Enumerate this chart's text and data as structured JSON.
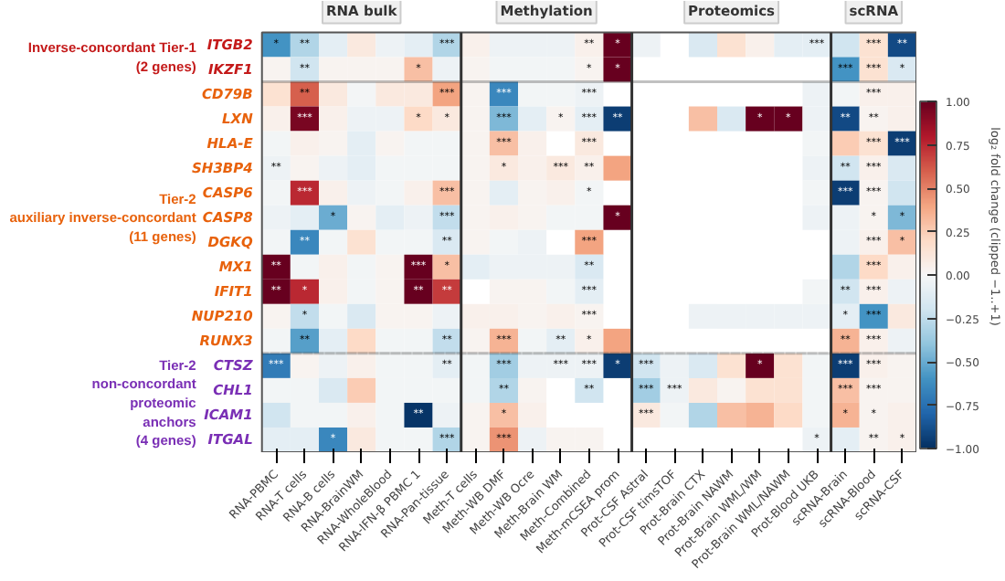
{
  "chart_data": {
    "type": "heatmap",
    "clabel": "log₂ fold change (clipped −1..+1)",
    "categories": [
      "RNA-PBMC",
      "RNA-T cells",
      "RNA-B cells",
      "RNA-BrainWM",
      "RNA-WholeBlood",
      "RNA-IFN-β PBMC 1",
      "RNA-Pan-tissue",
      "Meth-T cells",
      "Meth-WB DMF",
      "Meth-WB Ocre",
      "Meth-Brain WM",
      "Meth-Combined",
      "Meth-mCSEA prom",
      "Prot-CSF Astral",
      "Prot-CSF timsTOF",
      "Prot-Brain CTX",
      "Prot-Brain NAWM",
      "Prot-Brain WML/WM",
      "Prot-Brain WML/NAWM",
      "Prot-Blood UKB",
      "scRNA-Brain",
      "scRNA-Blood",
      "scRNA-CSF"
    ],
    "y_categories": [
      "ITGB2",
      "IKZF1",
      "CD79B",
      "LXN",
      "HLA-E",
      "SH3BP4",
      "CASP6",
      "CASP8",
      "DGKQ",
      "MX1",
      "IFIT1",
      "NUP210",
      "RUNX3",
      "CTSZ",
      "CHL1",
      "ICAM1",
      "ITGAL"
    ],
    "cells": [
      [
        -0.6,
        -0.3,
        -0.1,
        0.1,
        -0.05,
        -0.1,
        -0.3,
        0.05,
        -0.05,
        -0.05,
        -0.05,
        0.05,
        1.0,
        -0.05,
        null,
        -0.15,
        0.15,
        0.05,
        -0.1,
        -0.1,
        -0.2,
        0.15,
        -0.9
      ],
      [
        0.03,
        -0.2,
        0.03,
        0.03,
        0.03,
        0.3,
        -0.05,
        0.03,
        -0.03,
        -0.03,
        -0.03,
        0.03,
        1.0,
        null,
        null,
        null,
        null,
        null,
        null,
        null,
        -0.6,
        0.15,
        -0.15
      ],
      [
        0.15,
        0.6,
        0.1,
        -0.02,
        0.1,
        0.1,
        0.4,
        0.03,
        -0.65,
        -0.03,
        -0.03,
        -0.05,
        null,
        null,
        null,
        null,
        null,
        null,
        null,
        -0.05,
        -0.03,
        0.05,
        0.05
      ],
      [
        0.05,
        0.95,
        0.05,
        -0.05,
        -0.05,
        0.2,
        0.1,
        0.03,
        -0.45,
        -0.1,
        0.03,
        -0.1,
        -0.95,
        null,
        null,
        0.3,
        -0.15,
        1.0,
        1.0,
        -0.05,
        -0.9,
        0.03,
        0.05
      ],
      [
        -0.03,
        0.05,
        0.03,
        -0.1,
        0.03,
        -0.03,
        -0.03,
        0.03,
        0.3,
        0.05,
        null,
        0.1,
        null,
        null,
        null,
        null,
        null,
        null,
        null,
        -0.03,
        0.25,
        0.15,
        -0.95
      ],
      [
        -0.05,
        0.03,
        -0.05,
        -0.1,
        -0.03,
        -0.03,
        -0.03,
        0.03,
        0.1,
        0.05,
        0.1,
        0.05,
        0.4,
        null,
        null,
        null,
        null,
        null,
        null,
        -0.05,
        -0.2,
        0.05,
        -0.15
      ],
      [
        -0.03,
        0.75,
        0.05,
        -0.05,
        -0.03,
        0.05,
        0.3,
        0.03,
        -0.1,
        0.03,
        0.05,
        -0.03,
        null,
        null,
        null,
        null,
        null,
        null,
        null,
        -0.03,
        -0.95,
        0.03,
        -0.2
      ],
      [
        -0.05,
        -0.1,
        -0.5,
        0.03,
        -0.1,
        -0.05,
        -0.25,
        0.03,
        0.05,
        0.03,
        -0.03,
        -0.03,
        1.0,
        null,
        null,
        null,
        null,
        null,
        null,
        -0.05,
        -0.05,
        0.03,
        -0.45
      ],
      [
        -0.03,
        -0.65,
        -0.03,
        0.15,
        -0.03,
        -0.03,
        -0.15,
        0.03,
        -0.03,
        -0.05,
        null,
        0.4,
        null,
        null,
        null,
        null,
        null,
        null,
        null,
        null,
        -0.05,
        0.05,
        0.3
      ],
      [
        1.0,
        -0.03,
        0.05,
        -0.03,
        0.03,
        1.0,
        0.3,
        -0.1,
        -0.05,
        -0.05,
        -0.05,
        -0.15,
        null,
        null,
        null,
        null,
        null,
        null,
        null,
        null,
        -0.3,
        0.2,
        0.05
      ],
      [
        1.0,
        0.75,
        0.05,
        -0.03,
        0.03,
        1.0,
        0.7,
        null,
        0.03,
        0.03,
        -0.03,
        -0.1,
        null,
        null,
        null,
        null,
        null,
        null,
        null,
        -0.03,
        -0.2,
        0.05,
        -0.05
      ],
      [
        0.03,
        -0.25,
        -0.03,
        -0.15,
        0.03,
        0.03,
        -0.05,
        0.05,
        0.05,
        0.03,
        0.05,
        0.03,
        null,
        null,
        null,
        -0.05,
        -0.05,
        -0.05,
        -0.05,
        -0.05,
        -0.1,
        -0.6,
        0.1
      ],
      [
        -0.03,
        -0.55,
        -0.1,
        0.2,
        -0.03,
        -0.03,
        -0.25,
        0.03,
        0.35,
        -0.03,
        -0.1,
        0.05,
        0.4,
        null,
        null,
        null,
        null,
        null,
        null,
        null,
        0.35,
        0.05,
        -0.05
      ],
      [
        -0.7,
        0.03,
        -0.05,
        0.05,
        -0.03,
        -0.03,
        -0.1,
        -0.03,
        -0.35,
        -0.05,
        -0.05,
        -0.05,
        -0.95,
        -0.2,
        -0.05,
        -0.15,
        0.15,
        1.0,
        0.15,
        -0.03,
        -0.95,
        0.05,
        0.03
      ],
      [
        -0.03,
        -0.03,
        -0.15,
        0.25,
        -0.03,
        -0.03,
        -0.03,
        -0.03,
        -0.3,
        0.03,
        null,
        -0.2,
        null,
        -0.35,
        -0.05,
        0.1,
        0.03,
        0.15,
        0.15,
        -0.03,
        0.3,
        0.03,
        0.03
      ],
      [
        -0.2,
        -0.03,
        -0.03,
        0.05,
        -0.03,
        -0.98,
        -0.05,
        0.03,
        0.3,
        0.05,
        null,
        null,
        null,
        0.1,
        -0.03,
        -0.3,
        0.3,
        0.35,
        0.2,
        -0.03,
        0.35,
        0.03,
        0.05
      ],
      [
        -0.1,
        -0.1,
        -0.65,
        0.1,
        -0.03,
        -0.03,
        -0.3,
        0.03,
        0.45,
        -0.05,
        0.03,
        0.03,
        null,
        null,
        null,
        null,
        null,
        null,
        null,
        -0.05,
        -0.1,
        0.03,
        0.05
      ]
    ],
    "cell_labels": [
      [
        "*",
        "**",
        null,
        null,
        null,
        null,
        "***",
        null,
        null,
        null,
        null,
        "**",
        "*",
        null,
        null,
        null,
        null,
        null,
        null,
        "***",
        null,
        "***",
        "**"
      ],
      [
        null,
        "**",
        null,
        null,
        null,
        "*",
        null,
        null,
        null,
        null,
        null,
        "*",
        "*",
        null,
        null,
        null,
        null,
        null,
        null,
        null,
        "***",
        "***",
        "*"
      ],
      [
        null,
        "**",
        null,
        null,
        null,
        null,
        "***",
        null,
        "***",
        null,
        null,
        "***",
        null,
        null,
        null,
        null,
        null,
        null,
        null,
        null,
        null,
        "***",
        null
      ],
      [
        null,
        "***",
        null,
        null,
        null,
        "*",
        "*",
        null,
        "***",
        null,
        "*",
        "***",
        "**",
        null,
        null,
        null,
        null,
        "*",
        "*",
        null,
        "**",
        "**",
        null
      ],
      [
        null,
        null,
        null,
        null,
        null,
        null,
        null,
        null,
        "***",
        null,
        null,
        "***",
        null,
        null,
        null,
        null,
        null,
        null,
        null,
        null,
        null,
        "***",
        "***"
      ],
      [
        "**",
        null,
        null,
        null,
        null,
        null,
        null,
        null,
        "*",
        null,
        "***",
        "**",
        null,
        null,
        null,
        null,
        null,
        null,
        null,
        null,
        "**",
        "***",
        null
      ],
      [
        null,
        "***",
        null,
        null,
        null,
        null,
        "***",
        null,
        null,
        null,
        null,
        "*",
        null,
        null,
        null,
        null,
        null,
        null,
        null,
        null,
        "***",
        "***",
        null
      ],
      [
        null,
        null,
        "*",
        null,
        null,
        null,
        "***",
        null,
        null,
        null,
        null,
        null,
        "*",
        null,
        null,
        null,
        null,
        null,
        null,
        null,
        null,
        "*",
        "*"
      ],
      [
        null,
        "**",
        null,
        null,
        null,
        null,
        "**",
        null,
        null,
        null,
        null,
        "***",
        null,
        null,
        null,
        null,
        null,
        null,
        null,
        null,
        null,
        "***",
        "*"
      ],
      [
        "**",
        null,
        null,
        null,
        null,
        "***",
        "*",
        null,
        null,
        null,
        null,
        "**",
        null,
        null,
        null,
        null,
        null,
        null,
        null,
        null,
        null,
        "***",
        null
      ],
      [
        "**",
        "*",
        null,
        null,
        null,
        "**",
        "**",
        null,
        null,
        null,
        null,
        "***",
        null,
        null,
        null,
        null,
        null,
        null,
        null,
        null,
        "**",
        "***",
        null
      ],
      [
        null,
        "*",
        null,
        null,
        null,
        null,
        null,
        null,
        null,
        null,
        null,
        "***",
        null,
        null,
        null,
        null,
        null,
        null,
        null,
        null,
        "*",
        "***",
        null
      ],
      [
        null,
        "**",
        null,
        null,
        null,
        null,
        "**",
        null,
        "***",
        null,
        "**",
        "*",
        null,
        null,
        null,
        null,
        null,
        null,
        null,
        null,
        "**",
        "***",
        null
      ],
      [
        "***",
        null,
        null,
        null,
        null,
        null,
        "**",
        null,
        "***",
        null,
        "***",
        "***",
        "*",
        "***",
        null,
        null,
        null,
        "*",
        null,
        null,
        "***",
        "***",
        null
      ],
      [
        null,
        null,
        null,
        null,
        null,
        null,
        null,
        null,
        "**",
        null,
        null,
        "**",
        null,
        "***",
        "***",
        null,
        null,
        null,
        null,
        null,
        "***",
        "***",
        null
      ],
      [
        null,
        null,
        null,
        null,
        null,
        "**",
        null,
        null,
        "*",
        null,
        null,
        null,
        null,
        "***",
        null,
        null,
        null,
        null,
        null,
        null,
        "*",
        "*",
        null
      ],
      [
        null,
        null,
        "*",
        null,
        null,
        null,
        "***",
        null,
        "***",
        null,
        null,
        null,
        null,
        null,
        null,
        null,
        null,
        null,
        null,
        "*",
        null,
        "**",
        "*"
      ]
    ],
    "clim": [
      -1,
      1
    ],
    "cticks": [
      {
        "value": -1,
        "label": "−1.00"
      },
      {
        "value": -0.75,
        "label": "−0.75"
      },
      {
        "value": -0.5,
        "label": "−0.50"
      },
      {
        "value": -0.25,
        "label": "−0.25"
      },
      {
        "value": 0,
        "label": "0.00"
      },
      {
        "value": 0.25,
        "label": "0.25"
      },
      {
        "value": 0.5,
        "label": "0.50"
      },
      {
        "value": 0.75,
        "label": "0.75"
      },
      {
        "value": 1,
        "label": "1.00"
      }
    ],
    "annotations": [
      "RNA bulk",
      "Methylation",
      "Proteomics",
      "scRNA",
      "Inverse-concordant Tier-1\n(2 genes)",
      "Tier-2\nauxiliary inverse-concordant\n(11 genes)",
      "Tier-2\nnon-concordant\nproteomic\nanchors\n(4 genes)"
    ]
  }
}
